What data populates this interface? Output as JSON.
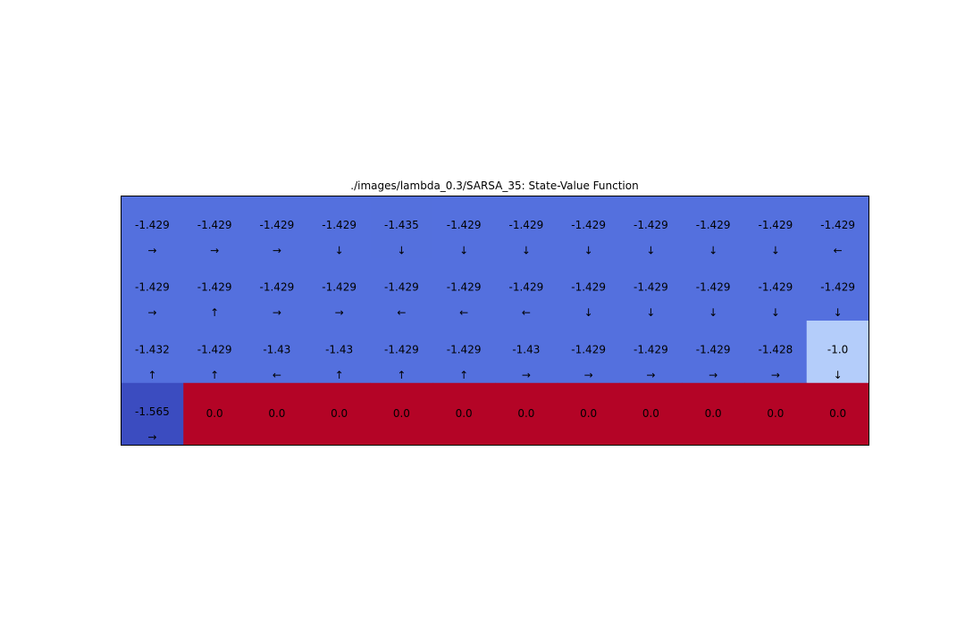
{
  "chart_data": {
    "type": "heatmap",
    "title": "./images/lambda_0.3/SARSA_35: State-Value Function",
    "rows": 4,
    "cols": 12,
    "colormap": "coolwarm",
    "grid": false,
    "values": [
      [
        "-1.429",
        "-1.429",
        "-1.429",
        "-1.429",
        "-1.435",
        "-1.429",
        "-1.429",
        "-1.429",
        "-1.429",
        "-1.429",
        "-1.429",
        "-1.429"
      ],
      [
        "-1.429",
        "-1.429",
        "-1.429",
        "-1.429",
        "-1.429",
        "-1.429",
        "-1.429",
        "-1.429",
        "-1.429",
        "-1.429",
        "-1.429",
        "-1.429"
      ],
      [
        "-1.432",
        "-1.429",
        "-1.43",
        "-1.43",
        "-1.429",
        "-1.429",
        "-1.43",
        "-1.429",
        "-1.429",
        "-1.429",
        "-1.428",
        "-1.0"
      ],
      [
        "-1.565",
        "0.0",
        "0.0",
        "0.0",
        "0.0",
        "0.0",
        "0.0",
        "0.0",
        "0.0",
        "0.0",
        "0.0",
        "0.0"
      ]
    ],
    "arrows": [
      [
        "→",
        "→",
        "→",
        "↓",
        "↓",
        "↓",
        "↓",
        "↓",
        "↓",
        "↓",
        "↓",
        "←"
      ],
      [
        "→",
        "↑",
        "→",
        "→",
        "←",
        "←",
        "←",
        "↓",
        "↓",
        "↓",
        "↓",
        "↓"
      ],
      [
        "↑",
        "↑",
        "←",
        "↑",
        "↑",
        "↑",
        "→",
        "→",
        "→",
        "→",
        "→",
        "↓"
      ],
      [
        "→",
        "",
        "",
        "",
        "",
        "",
        "",
        "",
        "",
        "",
        "",
        ""
      ]
    ],
    "colors": {
      "default": "#5470de",
      "row0_col4": "#5470dd",
      "row2_col11": "#b4cdfa",
      "row3_col0": "#3b4cc0",
      "cliff": "#b40426",
      "border": "#000000"
    }
  }
}
